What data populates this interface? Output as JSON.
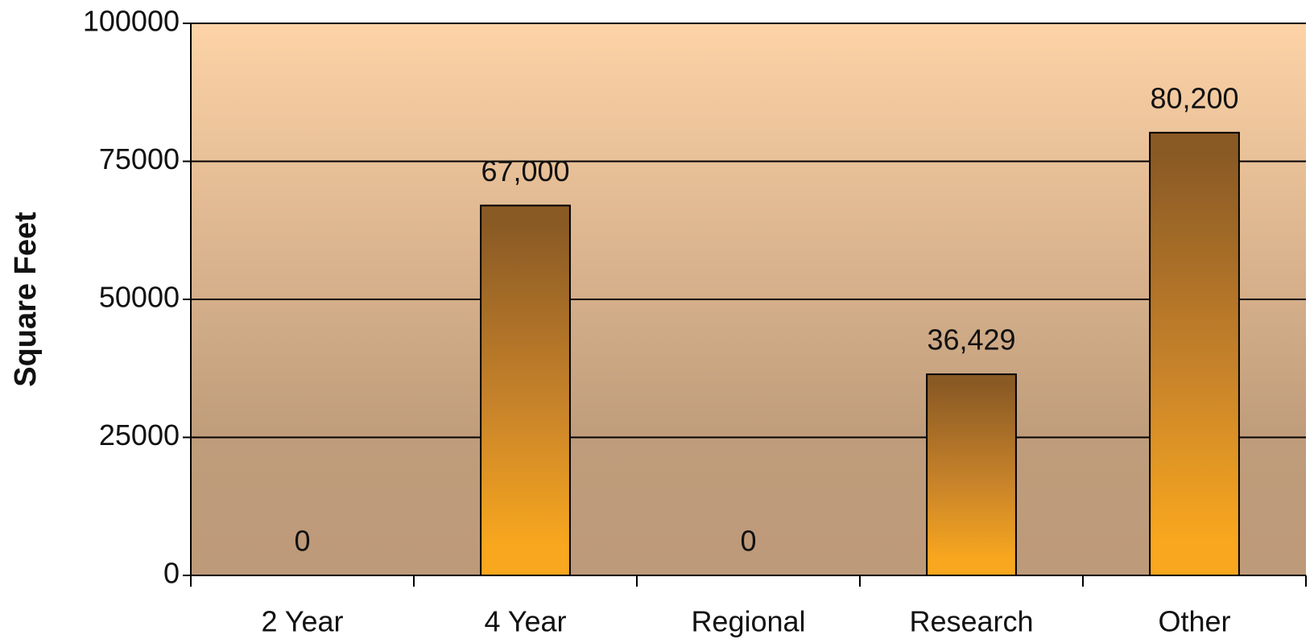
{
  "chart_data": {
    "type": "bar",
    "y_label": "Square Feet",
    "categories": [
      "2 Year",
      "4 Year",
      "Regional",
      "Research",
      "Other"
    ],
    "values": [
      0,
      67000,
      0,
      36429,
      80200
    ],
    "value_labels": [
      "0",
      "67,000",
      "0",
      "36,429",
      "80,200"
    ],
    "color": "#f8a71e",
    "ylim": [
      0,
      100000
    ],
    "yticks": [
      0,
      25000,
      50000,
      75000,
      100000
    ],
    "grid": true
  }
}
